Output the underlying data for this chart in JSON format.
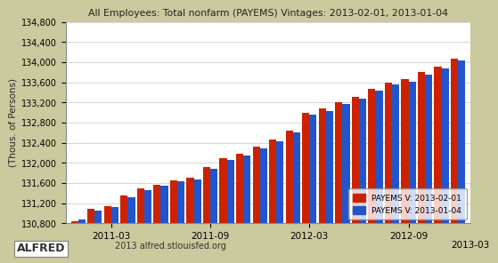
{
  "title": "All Employees: Total nonfarm (PAYEMS) Vintages: 2013-02-01, 2013-01-04",
  "ylabel": "(Thous. of Persons)",
  "background_color": "#caca9e",
  "plot_bg_color": "#ffffff",
  "bar_color_red": "#cc2200",
  "bar_color_blue": "#2255cc",
  "ylim_min": 130800,
  "ylim_max": 134800,
  "ytick_step": 400,
  "legend_label_red": "PAYEMS V: 2013-02-01",
  "legend_label_blue": "PAYEMS V: 2013-01-04",
  "watermark": "2013 alfred.stlouisfed.org",
  "xtick_labels": [
    "2011-03",
    "2011-09",
    "2012-03",
    "2012-09",
    "2013-03"
  ],
  "red_values": [
    130840,
    131090,
    131150,
    131360,
    131500,
    131570,
    131660,
    131710,
    131920,
    132100,
    132175,
    132320,
    132465,
    132645,
    132995,
    133075,
    133210,
    133310,
    133465,
    133595,
    133655,
    133800,
    133910,
    134075
  ],
  "blue_values": [
    130880,
    131060,
    131120,
    131325,
    131465,
    131545,
    131630,
    131675,
    131890,
    132065,
    132140,
    132290,
    132435,
    132610,
    132955,
    133035,
    133175,
    133275,
    133430,
    133555,
    133605,
    133745,
    133870,
    134025
  ]
}
